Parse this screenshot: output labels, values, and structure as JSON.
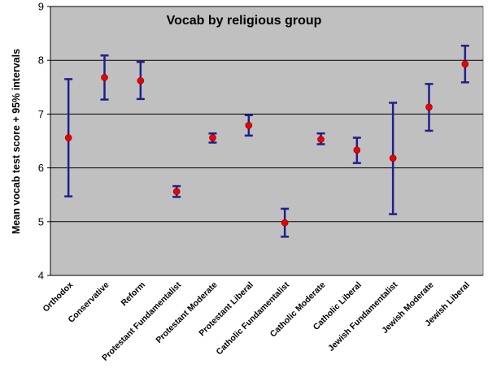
{
  "chart_data": {
    "type": "scatter",
    "title": "Vocab by religious group",
    "xlabel": "",
    "ylabel": "Mean vocab test score + 95% intervals",
    "ylim": [
      4,
      9
    ],
    "yticks": [
      "4",
      "5",
      "6",
      "7",
      "8",
      "9"
    ],
    "grid": true,
    "legend": "none",
    "colors": {
      "plot_background": "#c0c0c0",
      "error_bar": "#1f1f8f",
      "point": "#ee0000",
      "gridline": "#000000"
    },
    "categories": [
      "Orthodox",
      "Conservative",
      "Reform",
      "Protestant Fundamentalist",
      "Protestant Moderate",
      "Protestant Liberal",
      "Catholic Fundamentalist",
      "Catholic Moderate",
      "Catholic Liberal",
      "Jewish Fundamentalist",
      "Jewish Moderate",
      "Jewish Liberal"
    ],
    "series": [
      {
        "values": [
          6.56,
          7.68,
          7.62,
          5.56,
          6.56,
          6.79,
          4.98,
          6.53,
          6.33,
          6.18,
          7.13,
          7.93
        ],
        "lower": [
          5.47,
          7.27,
          7.28,
          5.46,
          6.47,
          6.6,
          4.72,
          6.44,
          6.09,
          5.14,
          6.69,
          7.59
        ],
        "upper": [
          7.65,
          8.09,
          7.97,
          5.66,
          6.64,
          6.98,
          5.24,
          6.64,
          6.56,
          7.21,
          7.56,
          8.27
        ]
      }
    ]
  }
}
